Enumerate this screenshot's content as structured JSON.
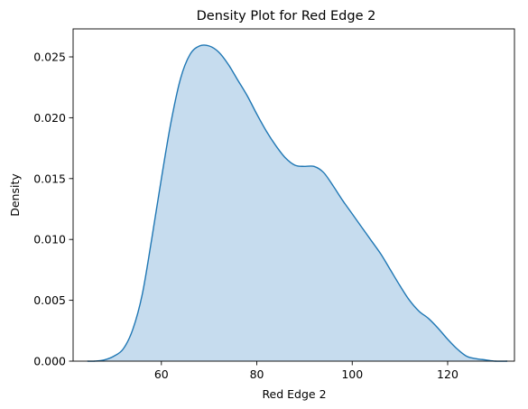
{
  "chart_data": {
    "type": "area",
    "title": "Density Plot for Red Edge 2",
    "xlabel": "Red Edge 2",
    "ylabel": "Density",
    "xlim": [
      41.5,
      134
    ],
    "ylim": [
      0,
      0.0273
    ],
    "xticks": [
      60,
      80,
      100,
      120
    ],
    "yticks": [
      0.0,
      0.005,
      0.01,
      0.015,
      0.02,
      0.025
    ],
    "ytick_labels": [
      "0.000",
      "0.005",
      "0.010",
      "0.015",
      "0.020",
      "0.025"
    ],
    "xtick_labels": [
      "60",
      "80",
      "100",
      "120"
    ],
    "grid": false,
    "line_color": "#1f77b4",
    "fill_color": "#c6dcee",
    "series": [
      {
        "x": [
          44.5,
          46,
          48,
          50,
          52,
          54,
          56,
          58,
          60,
          62,
          64,
          66,
          68,
          70,
          72,
          74,
          76,
          78,
          80,
          82,
          84,
          86,
          88,
          90,
          92,
          94,
          96,
          98,
          100,
          102,
          104,
          106,
          108,
          110,
          112,
          114,
          116,
          118,
          120,
          122,
          124,
          126,
          128,
          130,
          132.5
        ],
        "y": [
          0.0,
          0.0,
          0.0001,
          0.0004,
          0.001,
          0.0026,
          0.0055,
          0.0101,
          0.015,
          0.0196,
          0.0232,
          0.0252,
          0.0259,
          0.0259,
          0.0254,
          0.0244,
          0.0231,
          0.0218,
          0.0203,
          0.0189,
          0.0177,
          0.0167,
          0.0161,
          0.016,
          0.016,
          0.0155,
          0.0144,
          0.0132,
          0.0121,
          0.011,
          0.0099,
          0.0088,
          0.0075,
          0.0062,
          0.005,
          0.0041,
          0.0035,
          0.0027,
          0.0018,
          0.001,
          0.0004,
          0.0002,
          0.0001,
          0.0,
          0.0
        ]
      }
    ]
  }
}
